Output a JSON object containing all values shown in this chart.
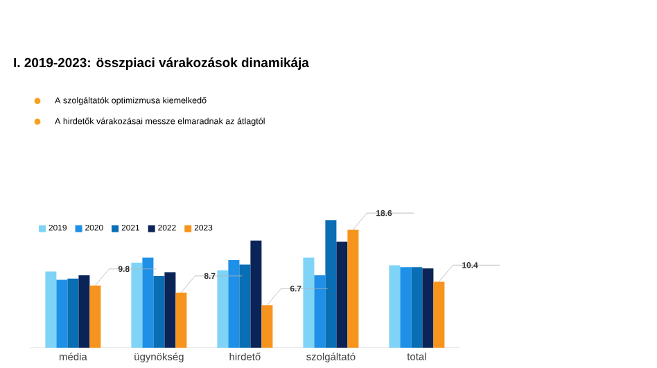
{
  "chart_data": {
    "type": "bar",
    "title": "I. 2019-2023: összpiaci várakozások dinamikája",
    "annotations": [
      "A szolgáltatók optimizmusa kiemelkedő",
      "A hirdetők várakozásai messze elmaradnak az átlagtól"
    ],
    "categories": [
      "média",
      "ügynökség",
      "hirdető",
      "szolgáltató",
      "total"
    ],
    "tick_labels": "x",
    "legend": "top left",
    "series": [
      {
        "name": "2019",
        "color": "#7fd3f7",
        "values": [
          12.0,
          13.4,
          12.2,
          14.2,
          13.0
        ]
      },
      {
        "name": "2020",
        "color": "#1e90e8",
        "values": [
          10.7,
          14.2,
          13.8,
          11.4,
          12.7
        ]
      },
      {
        "name": "2021",
        "color": "#0a6eb4",
        "values": [
          10.9,
          11.3,
          13.1,
          20.1,
          12.7
        ]
      },
      {
        "name": "2022",
        "color": "#0b2458",
        "values": [
          11.4,
          11.9,
          16.9,
          16.7,
          12.5
        ]
      },
      {
        "name": "2023",
        "color": "#f7941d",
        "values": [
          9.8,
          8.7,
          6.7,
          18.6,
          10.4
        ],
        "value_labels": [
          "9.8",
          "8.7",
          "6.7",
          "18.6",
          "10.4"
        ]
      }
    ]
  }
}
